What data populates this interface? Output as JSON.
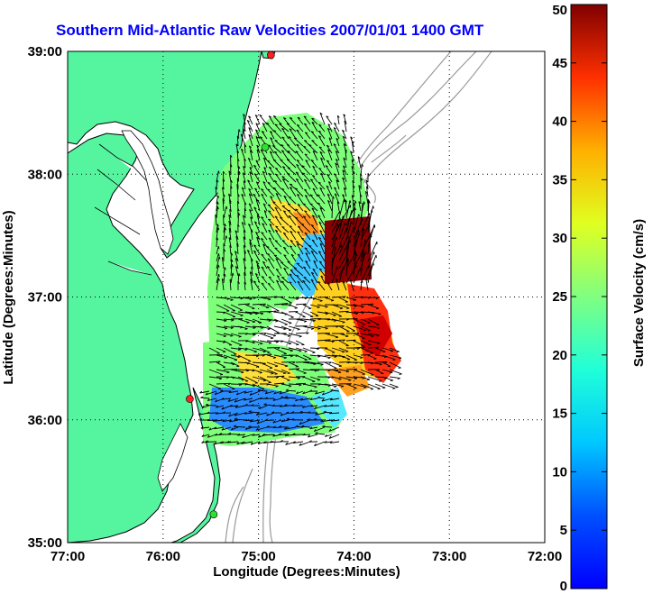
{
  "chart_data": {
    "type": "vector-field-map",
    "title": "Southern Mid-Atlantic Raw Velocities 2007/01/01 1400 GMT",
    "xlabel": "Longitude (Degrees:Minutes)",
    "ylabel": "Latitude (Degrees:Minutes)",
    "x_ticks": [
      "77:00",
      "76:00",
      "75:00",
      "74:00",
      "73:00",
      "72:00"
    ],
    "y_ticks": [
      "39:00",
      "38:00",
      "37:00",
      "36:00",
      "35:00"
    ],
    "xlim": [
      -77,
      -72
    ],
    "ylim": [
      35,
      39
    ],
    "grid": "dotted",
    "colorbar": {
      "label": "Surface Velocity (cm/s)",
      "ticks": [
        "50",
        "45",
        "40",
        "35",
        "30",
        "25",
        "20",
        "15",
        "10",
        "5",
        "0"
      ],
      "range": [
        0,
        50
      ],
      "colormap": "jet"
    },
    "colors": {
      "land": "#55f5a0",
      "water": "#ffffff",
      "coastline": "#000000",
      "bathymetry": "#999999",
      "grid": "#000000",
      "station_red": "#ff2020",
      "station_green": "#30e030"
    },
    "stations": [
      {
        "lon": -74.87,
        "lat": 38.97,
        "color": "red"
      },
      {
        "lon": -74.93,
        "lat": 38.22,
        "color": "green"
      },
      {
        "lon": -75.72,
        "lat": 36.17,
        "color": "red"
      },
      {
        "lon": -75.47,
        "lat": 35.23,
        "color": "green"
      }
    ]
  }
}
